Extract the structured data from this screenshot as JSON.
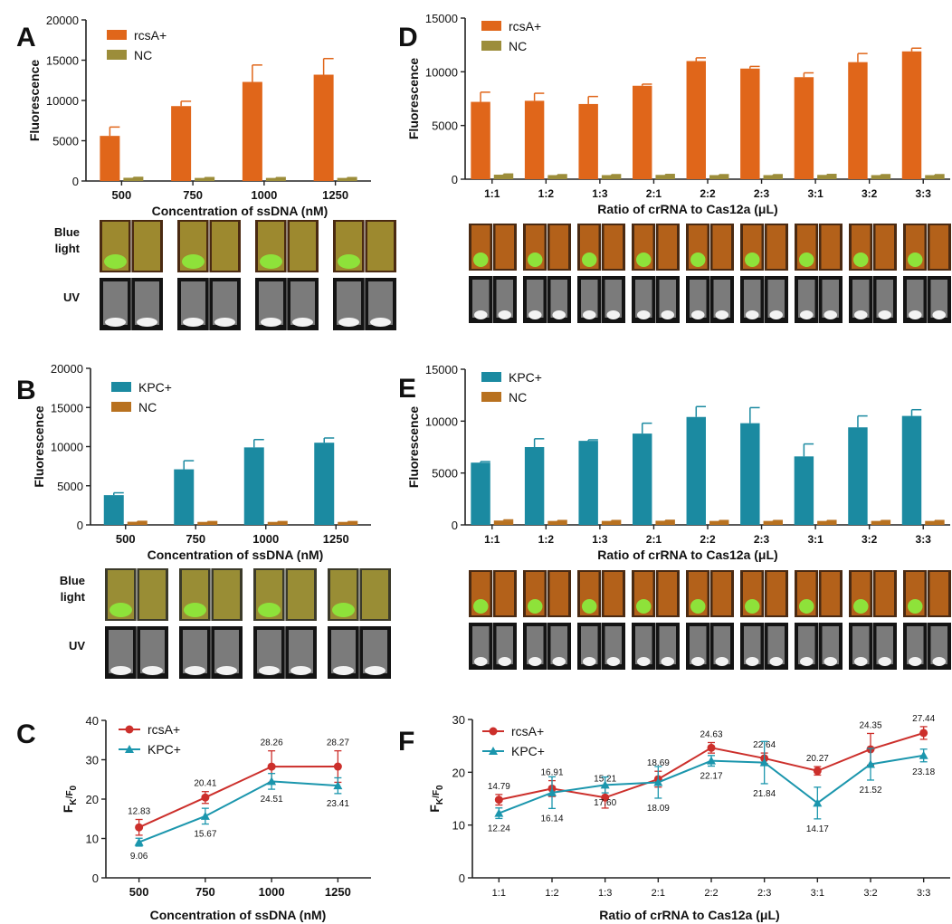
{
  "colors": {
    "rcsA": "#e0661a",
    "nc_A": "#9c8d3a",
    "kpc": "#1b8aa1",
    "nc_B": "#b8711f",
    "line_rcsA": "#cc2f2b",
    "line_kpc": "#1b96ad"
  },
  "photo_labels": {
    "blue_light": "Blue light",
    "uv": "UV"
  },
  "chart_data": [
    {
      "panel": "A",
      "type": "bar",
      "ylabel": "Fluorescence",
      "xlabel": "Concentration of ssDNA (nM)",
      "ylim": [
        0,
        20000
      ],
      "yticks": [
        "0",
        "5000",
        "10000",
        "15000",
        "20000"
      ],
      "categories": [
        "500",
        "750",
        "1000",
        "1250"
      ],
      "series": [
        {
          "name": "rcsA+",
          "color": "#e0661a",
          "values": [
            5600,
            9300,
            12300,
            13200
          ],
          "errors": [
            1100,
            600,
            2100,
            2000
          ]
        },
        {
          "name": "NC",
          "color": "#9c8d3a",
          "values": [
            400,
            380,
            380,
            380
          ],
          "errors": [
            50,
            40,
            40,
            40
          ]
        }
      ]
    },
    {
      "panel": "D",
      "type": "bar",
      "ylabel": "Fluorescence",
      "xlabel": "Ratio of crRNA to Cas12a (μL)",
      "ylim": [
        0,
        15000
      ],
      "yticks": [
        "0",
        "5000",
        "10000",
        "15000"
      ],
      "categories": [
        "1:1",
        "1:2",
        "1:3",
        "2:1",
        "2:2",
        "2:3",
        "3:1",
        "3:2",
        "3:3"
      ],
      "series": [
        {
          "name": "rcsA+",
          "color": "#e0661a",
          "values": [
            7200,
            7300,
            7000,
            8700,
            11000,
            10300,
            9500,
            10900,
            11900
          ],
          "errors": [
            900,
            700,
            700,
            150,
            300,
            200,
            400,
            800,
            300
          ]
        },
        {
          "name": "NC",
          "color": "#9c8d3a",
          "values": [
            420,
            380,
            380,
            400,
            380,
            380,
            400,
            380,
            380
          ],
          "errors": [
            60,
            40,
            40,
            40,
            40,
            40,
            40,
            40,
            40
          ]
        }
      ]
    },
    {
      "panel": "B",
      "type": "bar",
      "ylabel": "Fluorescence",
      "xlabel": "Concentration of ssDNA (nM)",
      "ylim": [
        0,
        20000
      ],
      "yticks": [
        "0",
        "5000",
        "10000",
        "15000",
        "20000"
      ],
      "categories": [
        "500",
        "750",
        "1000",
        "1250"
      ],
      "series": [
        {
          "name": "KPC+",
          "color": "#1b8aa1",
          "values": [
            3800,
            7100,
            9900,
            10500
          ],
          "errors": [
            300,
            1100,
            1000,
            600
          ]
        },
        {
          "name": "NC",
          "color": "#b8711f",
          "values": [
            400,
            380,
            380,
            380
          ],
          "errors": [
            50,
            40,
            40,
            40
          ]
        }
      ]
    },
    {
      "panel": "E",
      "type": "bar",
      "ylabel": "Fluorescence",
      "xlabel": "Ratio of crRNA to Cas12a (μL)",
      "ylim": [
        0,
        15000
      ],
      "yticks": [
        "0",
        "5000",
        "10000",
        "15000"
      ],
      "categories": [
        "1:1",
        "1:2",
        "1:3",
        "2:1",
        "2:2",
        "2:3",
        "3:1",
        "3:2",
        "3:3"
      ],
      "series": [
        {
          "name": "KPC+",
          "color": "#1b8aa1",
          "values": [
            6000,
            7500,
            8100,
            8800,
            10400,
            9800,
            6600,
            9400,
            10500
          ],
          "errors": [
            100,
            800,
            100,
            1000,
            1000,
            1500,
            1200,
            1100,
            600
          ]
        },
        {
          "name": "NC",
          "color": "#b8711f",
          "values": [
            420,
            380,
            380,
            400,
            380,
            380,
            380,
            380,
            380
          ],
          "errors": [
            60,
            40,
            40,
            40,
            40,
            40,
            40,
            40,
            40
          ]
        }
      ]
    },
    {
      "panel": "C",
      "type": "line",
      "ylabel": "FK/F0",
      "xlabel": "Concentration of ssDNA (nM)",
      "ylim": [
        0,
        40
      ],
      "yticks": [
        "0",
        "10",
        "20",
        "30",
        "40"
      ],
      "categories": [
        "500",
        "750",
        "1000",
        "1250"
      ],
      "series": [
        {
          "name": "rcsA+",
          "color": "#cc2f2b",
          "marker": "circle",
          "values": [
            12.83,
            20.41,
            28.26,
            28.27
          ],
          "errors": [
            2.0,
            1.5,
            4.0,
            4.0
          ],
          "labels": [
            "12.83",
            "20.41",
            "28.26",
            "28.27"
          ]
        },
        {
          "name": "KPC+",
          "color": "#1b96ad",
          "marker": "triangle",
          "values": [
            9.06,
            15.67,
            24.51,
            23.41
          ],
          "errors": [
            1.0,
            2.0,
            2.0,
            2.0
          ],
          "labels": [
            "9.06",
            "15.67",
            "24.51",
            "23.41"
          ]
        }
      ]
    },
    {
      "panel": "F",
      "type": "line",
      "ylabel": "FK/F0",
      "xlabel": "Ratio of crRNA to Cas12a (μL)",
      "ylim": [
        0,
        30
      ],
      "yticks": [
        "0",
        "10",
        "20",
        "30"
      ],
      "categories": [
        "1:1",
        "1:2",
        "1:3",
        "2:1",
        "2:2",
        "2:3",
        "3:1",
        "3:2",
        "3:3"
      ],
      "series": [
        {
          "name": "rcsA+",
          "color": "#cc2f2b",
          "marker": "circle",
          "values": [
            14.79,
            16.91,
            15.21,
            18.69,
            24.63,
            22.64,
            20.27,
            24.35,
            27.44
          ],
          "errors": [
            1.0,
            1.5,
            2.0,
            1.5,
            1.0,
            1.0,
            0.8,
            3.0,
            1.2
          ],
          "labels": [
            "14.79",
            "16.91",
            "15.21",
            "18.69",
            "24.63",
            "22.64",
            "20.27",
            "24.35",
            "27.44"
          ]
        },
        {
          "name": "KPC+",
          "color": "#1b96ad",
          "marker": "triangle",
          "values": [
            12.24,
            16.14,
            17.6,
            18.09,
            22.17,
            21.84,
            14.17,
            21.52,
            23.18
          ],
          "errors": [
            1.0,
            3.0,
            1.5,
            3.0,
            1.0,
            4.0,
            3.0,
            3.0,
            1.2
          ],
          "labels": [
            "12.24",
            "16.14",
            "17.60",
            "18.09",
            "22.17",
            "21.84",
            "14.17",
            "21.52",
            "23.18"
          ]
        }
      ]
    }
  ]
}
